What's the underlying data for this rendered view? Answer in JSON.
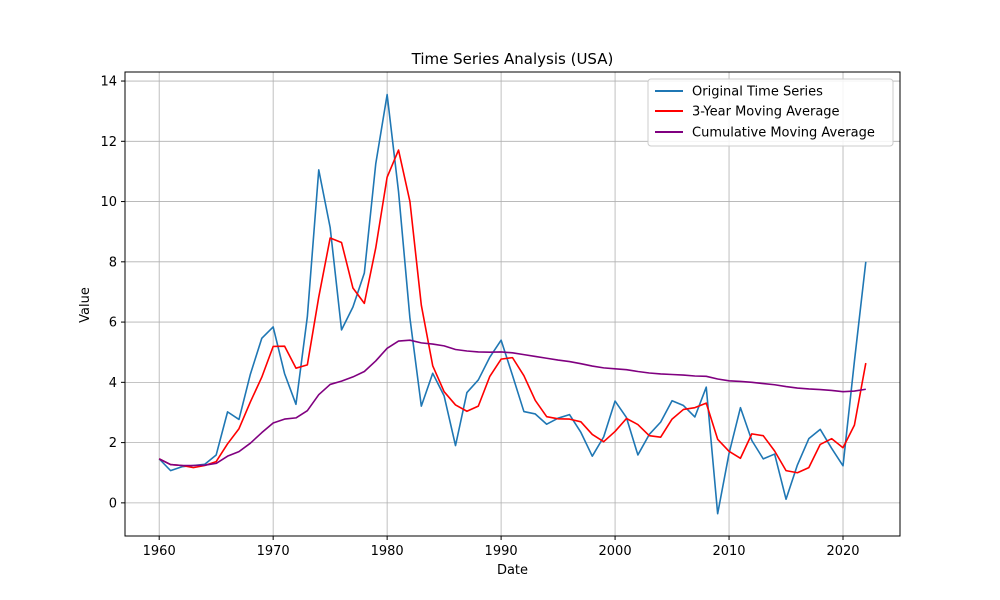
{
  "chart_data": {
    "type": "line",
    "title": "Time Series Analysis (USA)",
    "xlabel": "Date",
    "ylabel": "Value",
    "xlim": [
      1957,
      2025
    ],
    "ylim": [
      -1.1,
      14.3
    ],
    "xticks": [
      1960,
      1970,
      1980,
      1990,
      2000,
      2010,
      2020
    ],
    "yticks": [
      0,
      2,
      4,
      6,
      8,
      10,
      12,
      14
    ],
    "grid": true,
    "legend_position": "top-right",
    "x": [
      1960,
      1961,
      1962,
      1963,
      1964,
      1965,
      1966,
      1967,
      1968,
      1969,
      1970,
      1971,
      1972,
      1973,
      1974,
      1975,
      1976,
      1977,
      1978,
      1979,
      1980,
      1981,
      1982,
      1983,
      1984,
      1985,
      1986,
      1987,
      1988,
      1989,
      1990,
      1991,
      1992,
      1993,
      1994,
      1995,
      1996,
      1997,
      1998,
      1999,
      2000,
      2001,
      2002,
      2003,
      2004,
      2005,
      2006,
      2007,
      2008,
      2009,
      2010,
      2011,
      2012,
      2013,
      2014,
      2015,
      2016,
      2017,
      2018,
      2019,
      2020,
      2021,
      2022
    ],
    "series": [
      {
        "name": "Original Time Series",
        "color": "#1f77b4",
        "values": [
          1.46,
          1.07,
          1.2,
          1.24,
          1.28,
          1.59,
          3.02,
          2.77,
          4.27,
          5.46,
          5.84,
          4.29,
          3.27,
          6.18,
          11.05,
          9.14,
          5.74,
          6.5,
          7.63,
          11.25,
          13.55,
          10.33,
          6.13,
          3.21,
          4.3,
          3.55,
          1.9,
          3.66,
          4.08,
          4.83,
          5.4,
          4.23,
          3.03,
          2.95,
          2.61,
          2.81,
          2.93,
          2.34,
          1.55,
          2.19,
          3.38,
          2.83,
          1.59,
          2.27,
          2.68,
          3.39,
          3.23,
          2.85,
          3.84,
          -0.36,
          1.64,
          3.16,
          2.07,
          1.46,
          1.62,
          0.12,
          1.26,
          2.13,
          2.44,
          1.81,
          1.23,
          4.7,
          8.0
        ]
      },
      {
        "name": "3-Year Moving Average",
        "color": "#ff0000",
        "values": [
          1.46,
          1.27,
          1.24,
          1.17,
          1.24,
          1.37,
          1.96,
          2.46,
          3.35,
          4.17,
          5.19,
          5.2,
          4.47,
          4.58,
          6.83,
          8.79,
          8.64,
          7.13,
          6.62,
          8.46,
          10.81,
          11.71,
          10.0,
          6.56,
          4.55,
          3.69,
          3.25,
          3.04,
          3.21,
          4.19,
          4.77,
          4.82,
          4.22,
          3.4,
          2.86,
          2.79,
          2.78,
          2.69,
          2.27,
          2.03,
          2.37,
          2.8,
          2.6,
          2.23,
          2.18,
          2.78,
          3.1,
          3.16,
          3.31,
          2.11,
          1.71,
          1.48,
          2.29,
          2.23,
          1.72,
          1.07,
          1.0,
          1.17,
          1.94,
          2.13,
          1.83,
          2.58,
          4.64
        ]
      },
      {
        "name": "Cumulative Moving Average",
        "color": "#800080",
        "values": [
          1.46,
          1.27,
          1.24,
          1.24,
          1.25,
          1.31,
          1.55,
          1.7,
          1.98,
          2.33,
          2.65,
          2.78,
          2.82,
          3.06,
          3.59,
          3.93,
          4.04,
          4.18,
          4.36,
          4.71,
          5.13,
          5.37,
          5.4,
          5.31,
          5.27,
          5.21,
          5.09,
          5.04,
          5.01,
          5.0,
          5.01,
          4.98,
          4.92,
          4.86,
          4.8,
          4.74,
          4.69,
          4.62,
          4.54,
          4.48,
          4.45,
          4.42,
          4.36,
          4.31,
          4.28,
          4.26,
          4.24,
          4.21,
          4.2,
          4.11,
          4.05,
          4.03,
          4.0,
          3.96,
          3.92,
          3.86,
          3.81,
          3.78,
          3.76,
          3.73,
          3.69,
          3.71,
          3.77
        ]
      }
    ]
  }
}
